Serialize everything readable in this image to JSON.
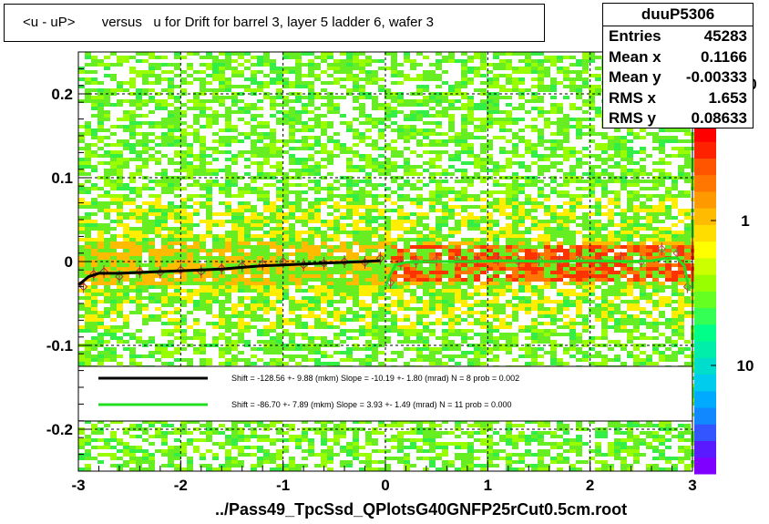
{
  "title": "<u - uP>       versus   u for Drift for barrel 3, layer 5 ladder 6, wafer 3",
  "footer": "../Pass49_TpcSsd_QPlotsG40GNFP25rCut0.5cm.root",
  "stats": {
    "name": "duuP5306",
    "rows": [
      {
        "label": "Entries",
        "value": "45283"
      },
      {
        "label": "Mean x",
        "value": "0.1166"
      },
      {
        "label": "Mean y",
        "value": "-0.00333"
      },
      {
        "label": "RMS x",
        "value": "1.653"
      },
      {
        "label": "RMS y",
        "value": "0.08633"
      }
    ]
  },
  "colors": {
    "fit1": "#000000",
    "fit2": "#22dd22",
    "palette": [
      "#7f00ff",
      "#5a1aff",
      "#3355ff",
      "#1188ff",
      "#00aaff",
      "#00ccee",
      "#00ddcc",
      "#00eeaa",
      "#00ff88",
      "#33ff55",
      "#66ff22",
      "#99ff00",
      "#ccff00",
      "#ffff00",
      "#ffdd00",
      "#ffbb00",
      "#ff9900",
      "#ff7700",
      "#ff5500",
      "#ff2200",
      "#ff0000"
    ]
  },
  "chart_data": {
    "type": "heatmap",
    "title": "<u - uP>       versus   u for Drift for barrel 3, layer 5 ladder 6, wafer 3",
    "xlim": [
      -3,
      3
    ],
    "ylim": [
      -0.25,
      0.25
    ],
    "x_ticks": [
      "-3",
      "-2",
      "-1",
      "0",
      "1",
      "2",
      "3"
    ],
    "y_ticks": [
      "-0.2",
      "-0.1",
      "0",
      "0.1",
      "0.2"
    ],
    "z_ticks": [
      "1",
      "10"
    ],
    "z_top_partial": "0",
    "grid": true,
    "profile_left": {
      "x": [
        -2.95,
        -2.85,
        -2.75,
        -2.6,
        -2.4,
        -2.2,
        -2.0,
        -1.8,
        -1.6,
        -1.4,
        -1.2,
        -1.0,
        -0.8,
        -0.6,
        -0.4,
        -0.2,
        -0.05
      ],
      "y": [
        -0.03,
        -0.015,
        -0.012,
        -0.018,
        -0.012,
        -0.013,
        -0.01,
        -0.012,
        -0.008,
        -0.005,
        -0.003,
        0.0,
        -0.004,
        -0.002,
        0.0,
        -0.001,
        0.004
      ]
    },
    "profile_right": {
      "x": [
        0.05,
        0.15,
        0.3,
        0.5,
        0.7,
        0.9,
        1.1,
        1.3,
        1.5,
        1.7,
        1.9,
        2.1,
        2.3,
        2.5,
        2.7,
        2.85,
        2.95
      ],
      "y": [
        -0.025,
        -0.002,
        0.0,
        0.002,
        0.001,
        0.002,
        0.003,
        0.0,
        0.002,
        0.001,
        0.003,
        0.001,
        0.004,
        0.0,
        0.015,
        0.01,
        -0.03
      ]
    },
    "fit_left": {
      "x": [
        -3.0,
        -2.9,
        -2.8,
        -2.6,
        -2.4,
        -2.2,
        -2.0,
        -1.8,
        -1.6,
        -1.4,
        -1.2,
        -1.0,
        -0.8,
        -0.6,
        -0.4,
        -0.2,
        -0.05
      ],
      "y": [
        -0.028,
        -0.018,
        -0.014,
        -0.014,
        -0.013,
        -0.012,
        -0.011,
        -0.01,
        -0.009,
        -0.007,
        -0.005,
        -0.004,
        -0.003,
        -0.002,
        -0.001,
        0.0,
        0.001
      ]
    },
    "fit_right": {
      "x": [
        0.0,
        0.05,
        0.1,
        0.2,
        0.4,
        0.8,
        1.2,
        1.6,
        2.0,
        2.4,
        2.6,
        2.75,
        2.85,
        2.92,
        2.97
      ],
      "y": [
        -0.03,
        -0.015,
        -0.004,
        -0.001,
        0.0,
        0.0,
        0.001,
        0.0,
        0.001,
        0.0,
        0.001,
        0.004,
        0.004,
        -0.005,
        -0.035
      ]
    },
    "legend": [
      {
        "text": "Shift =  -128.56 +- 9.88 (mkm) Slope =   -10.19 +- 1.80 (mrad)  N = 8 prob = 0.002"
      },
      {
        "text": "Shift =   -86.70 +- 7.89 (mkm) Slope =     3.93 +- 1.49 (mrad)  N = 11 prob = 0.000"
      }
    ]
  }
}
